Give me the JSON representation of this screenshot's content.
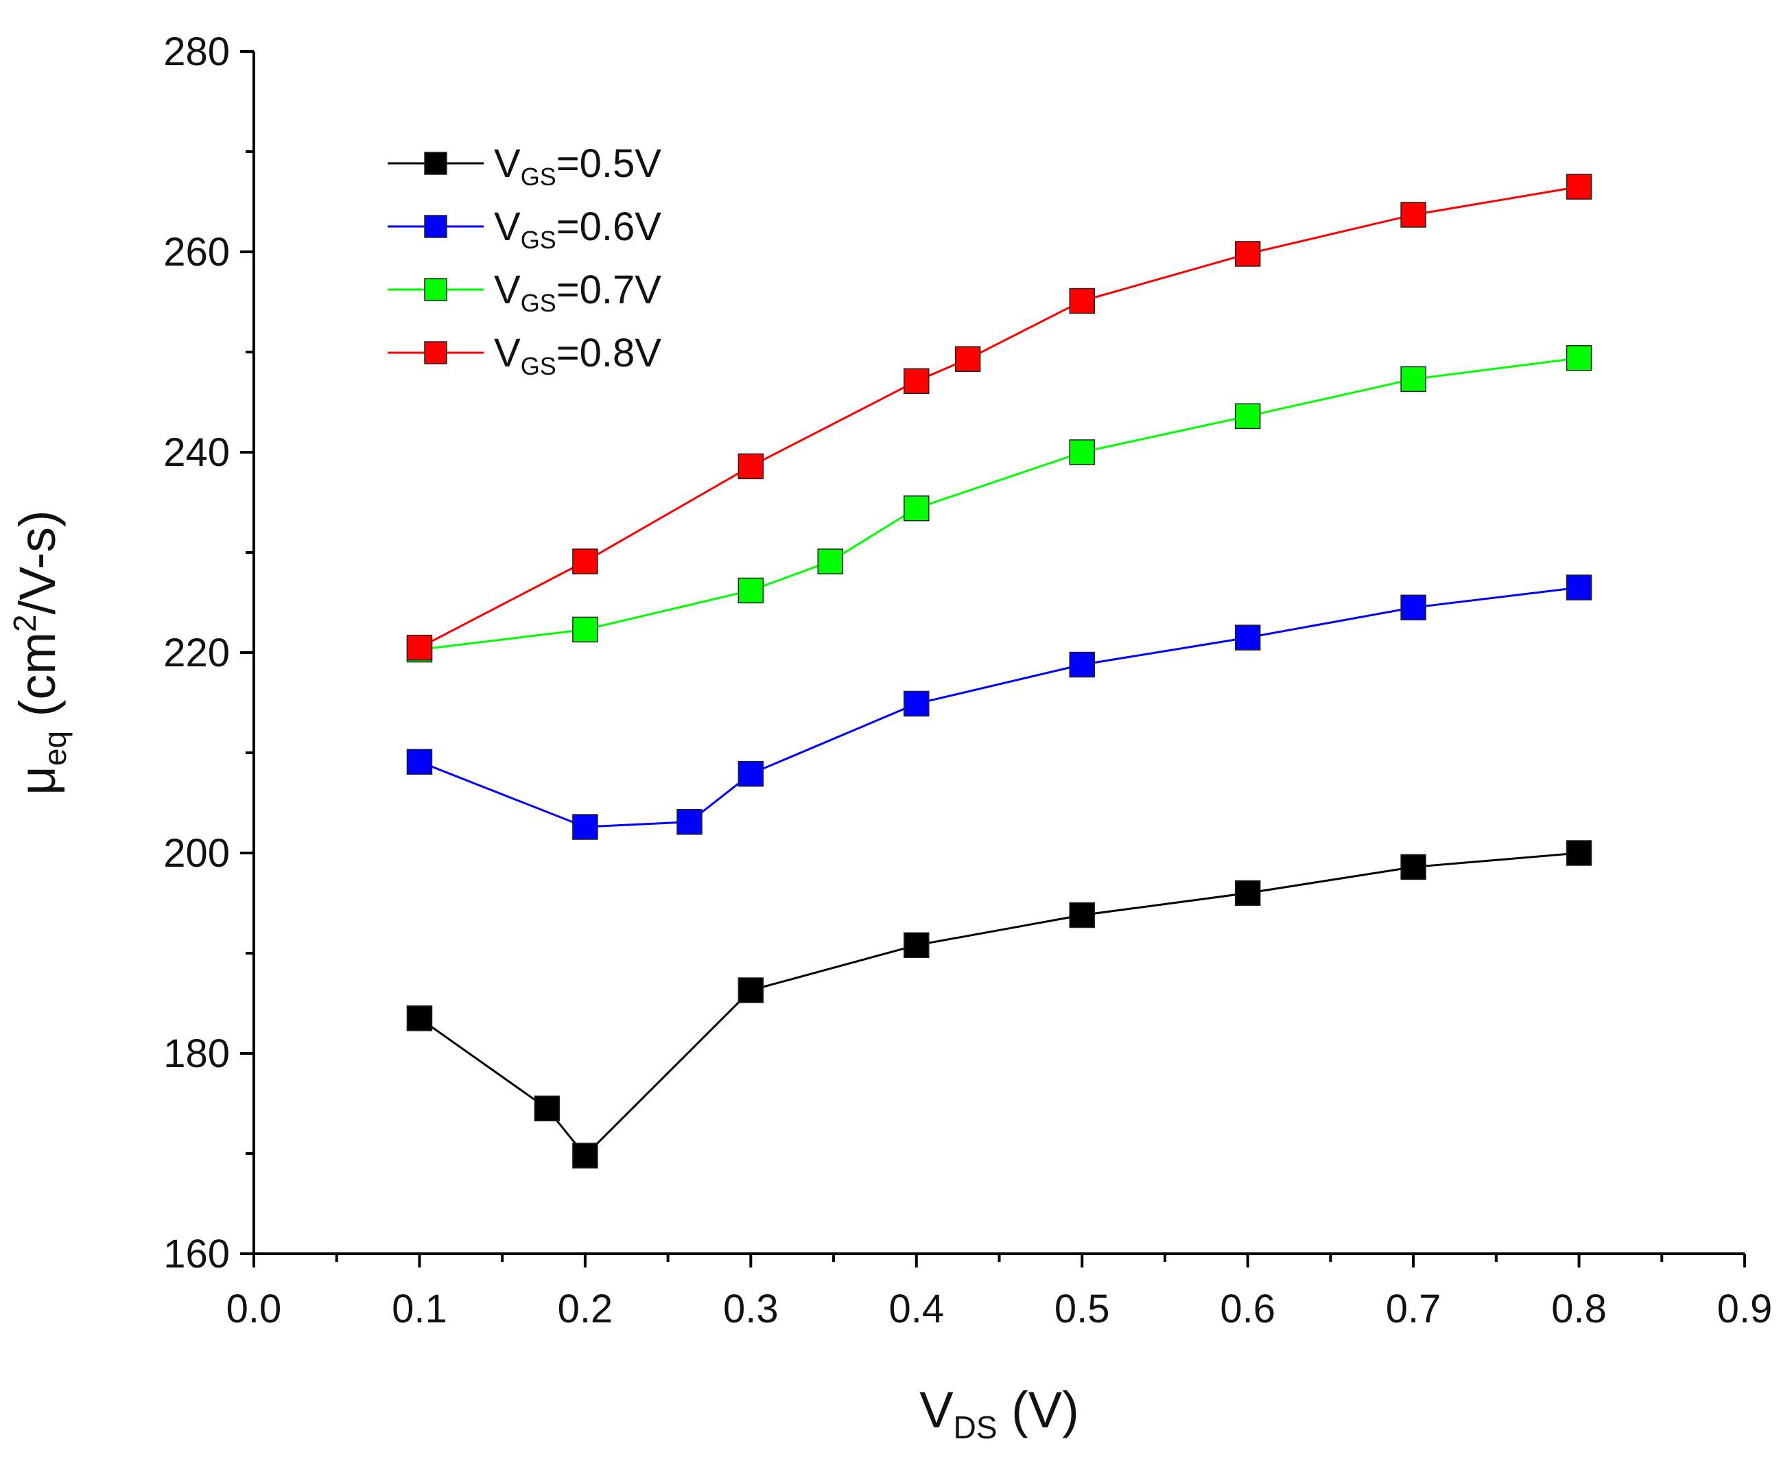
{
  "chart_data": {
    "type": "line",
    "title": "",
    "xlabel": {
      "main": "V",
      "sub": "DS",
      "rest": " (V)"
    },
    "ylabel": {
      "main": "μ",
      "sub": "eq",
      "rest": " (cm",
      "sup": "2",
      "rest2": "/V-s)"
    },
    "xlim": [
      0.0,
      0.9
    ],
    "ylim": [
      160,
      280
    ],
    "xticks": [
      "0.0",
      "0.1",
      "0.2",
      "0.3",
      "0.4",
      "0.5",
      "0.6",
      "0.7",
      "0.8",
      "0.9"
    ],
    "yticks": [
      "160",
      "180",
      "200",
      "220",
      "240",
      "260",
      "280"
    ],
    "grid": false,
    "legend_position": "top-left",
    "series": [
      {
        "name": "VGS=0.5V",
        "label_main": "V",
        "label_sub": "GS",
        "label_rest": "=0.5V",
        "color": "#000000",
        "marker": "square",
        "x": [
          0.1,
          0.177,
          0.2,
          0.3,
          0.4,
          0.5,
          0.6,
          0.7,
          0.8
        ],
        "y": [
          183.5,
          174.5,
          169.8,
          186.3,
          190.8,
          193.8,
          196.0,
          198.6,
          200.0
        ]
      },
      {
        "name": "VGS=0.6V",
        "label_main": "V",
        "label_sub": "GS",
        "label_rest": "=0.6V",
        "color": "#0000ff",
        "marker": "square",
        "x": [
          0.1,
          0.2,
          0.263,
          0.3,
          0.4,
          0.5,
          0.6,
          0.7,
          0.8
        ],
        "y": [
          209.1,
          202.6,
          203.1,
          207.9,
          214.9,
          218.8,
          221.5,
          224.5,
          226.5
        ]
      },
      {
        "name": "VGS=0.7V",
        "label_main": "V",
        "label_sub": "GS",
        "label_rest": "=0.7V",
        "color": "#00ff00",
        "marker": "square",
        "x": [
          0.1,
          0.2,
          0.3,
          0.348,
          0.4,
          0.5,
          0.6,
          0.7,
          0.8
        ],
        "y": [
          220.3,
          222.3,
          226.2,
          229.1,
          234.4,
          240.0,
          243.6,
          247.3,
          249.4
        ]
      },
      {
        "name": "VGS=0.8V",
        "label_main": "V",
        "label_sub": "GS",
        "label_rest": "=0.8V",
        "color": "#ff0000",
        "marker": "square",
        "x": [
          0.1,
          0.2,
          0.3,
          0.4,
          0.431,
          0.5,
          0.6,
          0.7,
          0.8
        ],
        "y": [
          220.5,
          229.1,
          238.6,
          247.1,
          249.3,
          255.1,
          259.8,
          263.7,
          266.5
        ]
      }
    ]
  }
}
